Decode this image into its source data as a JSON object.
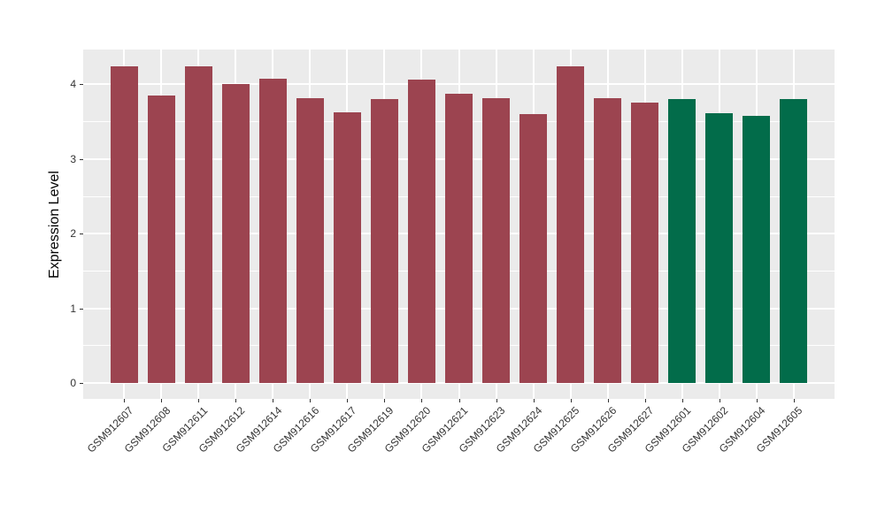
{
  "figure": {
    "background": "#FFFFFF",
    "panel_background": "#EBEBEB",
    "grid_color": "#FFFFFF",
    "axis_text_color": "#333333",
    "axis_title_color": "#000000"
  },
  "chart_data": {
    "type": "bar",
    "title": "",
    "xlabel": "",
    "ylabel": "Expression Level",
    "legend": "none",
    "grid": true,
    "categories": [
      "GSM912607",
      "GSM912608",
      "GSM912611",
      "GSM912612",
      "GSM912614",
      "GSM912616",
      "GSM912617",
      "GSM912619",
      "GSM912620",
      "GSM912621",
      "GSM912623",
      "GSM912624",
      "GSM912625",
      "GSM912626",
      "GSM912627",
      "GSM912601",
      "GSM912602",
      "GSM912604",
      "GSM912605"
    ],
    "values": [
      4.24,
      3.85,
      4.24,
      4.01,
      4.08,
      3.81,
      3.63,
      3.8,
      4.06,
      3.88,
      3.81,
      3.6,
      4.24,
      3.81,
      3.76,
      3.8,
      3.61,
      3.58,
      3.8
    ],
    "groups": [
      1,
      1,
      1,
      1,
      1,
      1,
      1,
      1,
      1,
      1,
      1,
      1,
      1,
      1,
      1,
      2,
      2,
      2,
      2
    ],
    "group_colors": {
      "1": "#9C4450",
      "2": "#026C4A"
    },
    "yticks": [
      0,
      1,
      2,
      3,
      4
    ],
    "ytick_labels": [
      "0",
      "1",
      "2",
      "3",
      "4"
    ],
    "minor_yticks": [
      0.5,
      1.5,
      2.5,
      3.5
    ],
    "ylim": [
      -0.213,
      4.467
    ],
    "x_tick_angle": 45
  }
}
